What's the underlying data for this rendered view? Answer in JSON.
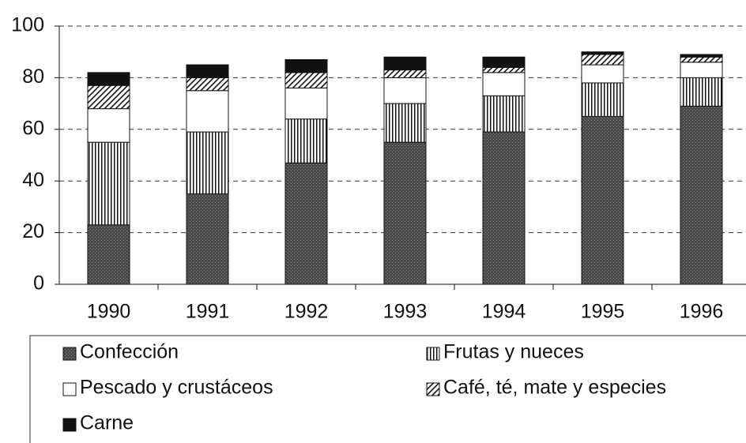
{
  "chart_data": {
    "type": "stacked_bar",
    "categories": [
      "1990",
      "1991",
      "1992",
      "1993",
      "1994",
      "1995",
      "1996"
    ],
    "series": [
      {
        "name": "Confección",
        "color": "#4a4a4a",
        "pattern": "speckle",
        "values": [
          23,
          35,
          47,
          55,
          59,
          65,
          69
        ]
      },
      {
        "name": "Frutas y nueces",
        "color": "#ffffff",
        "pattern": "vertical",
        "values": [
          32,
          24,
          17,
          15,
          14,
          13,
          11
        ]
      },
      {
        "name": "Pescado y crustáceos",
        "color": "#ffffff",
        "pattern": "none",
        "values": [
          13,
          16,
          12,
          10,
          9,
          7,
          6
        ]
      },
      {
        "name": "Café, té, mate y especies",
        "color": "#ffffff",
        "pattern": "diagonal",
        "values": [
          9,
          5,
          6,
          3,
          2,
          4,
          2
        ]
      },
      {
        "name": "Carne",
        "color": "#111111",
        "pattern": "none",
        "values": [
          5,
          5,
          5,
          5,
          4,
          1,
          1
        ]
      }
    ],
    "ylim": [
      0,
      100
    ],
    "yticks": [
      0,
      20,
      40,
      60,
      80,
      100
    ],
    "grid": true
  }
}
